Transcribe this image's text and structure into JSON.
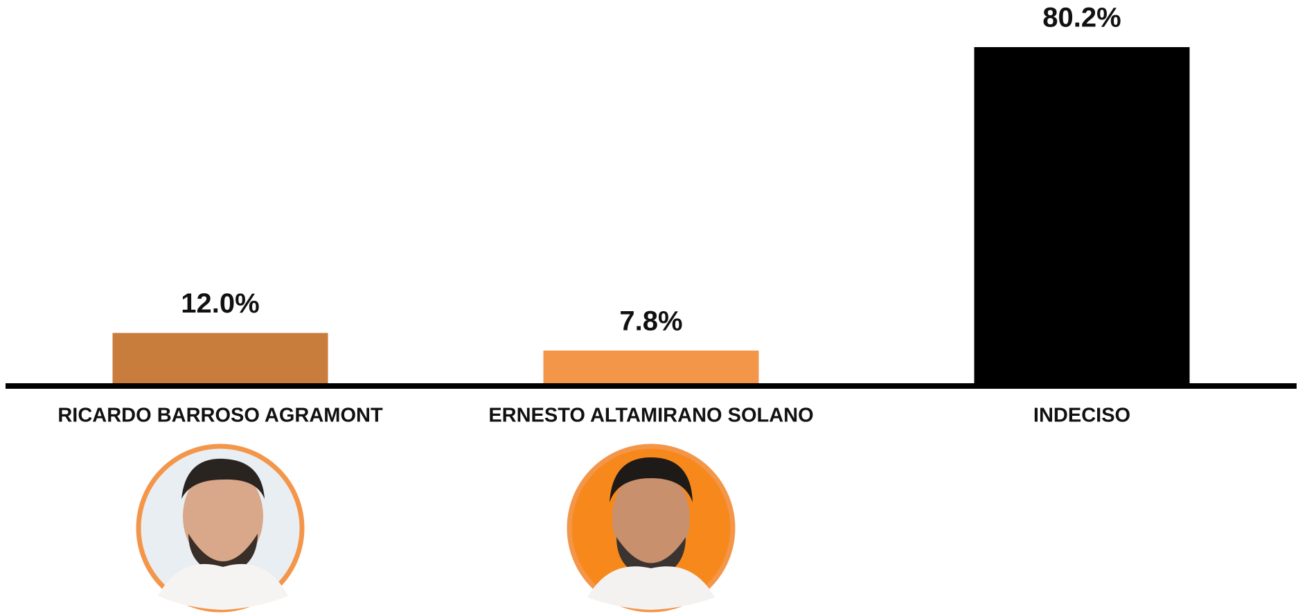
{
  "chart_data": {
    "type": "bar",
    "categories": [
      "RICARDO BARROSO AGRAMONT",
      "ERNESTO ALTAMIRANO SOLANO",
      "INDECISO"
    ],
    "values": [
      12.0,
      7.8,
      80.2
    ],
    "value_labels": [
      "12.0%",
      "7.8%",
      "80.2%"
    ],
    "colors": [
      "#c87d3c",
      "#f4964a",
      "#000000"
    ]
  }
}
